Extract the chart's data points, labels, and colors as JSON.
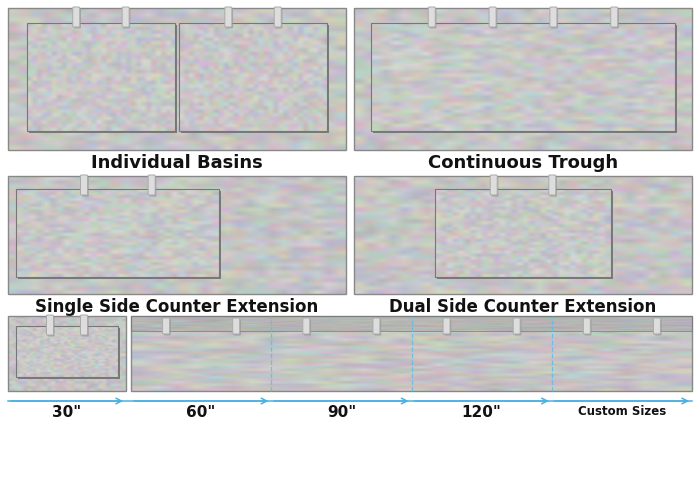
{
  "bg_color": "#ffffff",
  "counter_color": "#c5c5c5",
  "basin_color": "#c8c8c8",
  "shadow_color": "#7a7a7a",
  "faucet_color": "#dddddd",
  "faucet_shadow": "#888888",
  "border_color": "#888888",
  "basin_border": "#777777",
  "title_fontsize": 13,
  "label_fontsize": 9,
  "arrow_color": "#4ab0e0",
  "dashed_color": "#5bc0e8",
  "labels_top": [
    "Individual Basins",
    "Continuous Trough"
  ],
  "labels_mid": [
    "Single Side Counter Extension",
    "Dual Side Counter Extension"
  ],
  "size_labels": [
    "30\"",
    "60\"",
    "90\"",
    "120\"",
    "Custom Sizes"
  ]
}
